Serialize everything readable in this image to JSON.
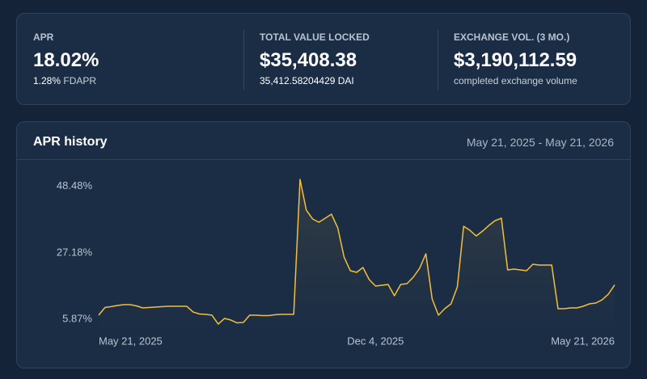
{
  "stats": [
    {
      "label": "APR",
      "value": "18.02%",
      "sub_value": "1.28%",
      "sub_label": "FDAPR"
    },
    {
      "label": "TOTAL VALUE LOCKED",
      "value": "$35,408.38",
      "sub_label": "35,412.58204429 DAI"
    },
    {
      "label": "EXCHANGE VOL. (3 MO.)",
      "value": "$3,190,112.59",
      "sub_label": "completed exchange volume"
    }
  ],
  "chart_data": {
    "type": "line",
    "title": "APR history",
    "subtitle": "May 21, 2025 - May 21, 2026",
    "categories": [
      "May 21, 2025",
      null,
      null,
      null,
      null,
      null,
      null,
      null,
      null,
      null,
      null,
      null,
      null,
      null,
      null,
      null,
      null,
      null,
      null,
      null,
      null,
      null,
      null,
      null,
      null,
      null,
      null,
      null,
      null,
      null,
      null,
      null,
      null,
      null,
      null,
      null,
      null,
      null,
      null,
      null,
      null,
      null,
      null,
      null,
      "Dec 4, 2025",
      null,
      null,
      null,
      null,
      null,
      null,
      null,
      null,
      null,
      null,
      null,
      null,
      null,
      null,
      null,
      null,
      null,
      null,
      null,
      null,
      null,
      null,
      null,
      null,
      null,
      null,
      null,
      null,
      null,
      null,
      null,
      null,
      null,
      null,
      null,
      null,
      null,
      "May 21, 2026"
    ],
    "values": [
      7.17,
      9.63,
      9.92,
      10.28,
      10.54,
      10.54,
      10.15,
      9.5,
      9.63,
      9.76,
      9.89,
      10.02,
      10.02,
      10.02,
      10.02,
      8.2,
      7.56,
      7.43,
      7.17,
      4.31,
      6.13,
      5.61,
      4.7,
      4.83,
      7.17,
      7.17,
      7.04,
      7.04,
      7.3,
      7.43,
      7.43,
      7.43,
      50.74,
      40.89,
      38.04,
      37.0,
      38.3,
      39.59,
      35.18,
      25.84,
      21.43,
      20.91,
      22.47,
      18.58,
      16.51,
      16.76,
      17.02,
      13.39,
      17.02,
      17.28,
      19.36,
      22.21,
      26.88,
      12.36,
      7.17,
      9.24,
      10.8,
      16.25,
      35.7,
      34.4,
      32.59,
      34.14,
      35.96,
      37.51,
      38.3,
      21.69,
      21.95,
      21.69,
      21.43,
      23.51,
      23.25,
      23.25,
      23.25,
      9.24,
      9.24,
      9.5,
      9.5,
      10.02,
      10.8,
      11.06,
      12.09,
      13.91,
      16.89
    ],
    "color": "#f2bf3a",
    "ylim": [
      2.5,
      53.86
    ],
    "yticks": [
      {
        "value": 5.87,
        "label": "5.87%"
      },
      {
        "value": 27.18,
        "label": "27.18%"
      },
      {
        "value": 48.48,
        "label": "48.48%"
      }
    ],
    "grid": false
  }
}
